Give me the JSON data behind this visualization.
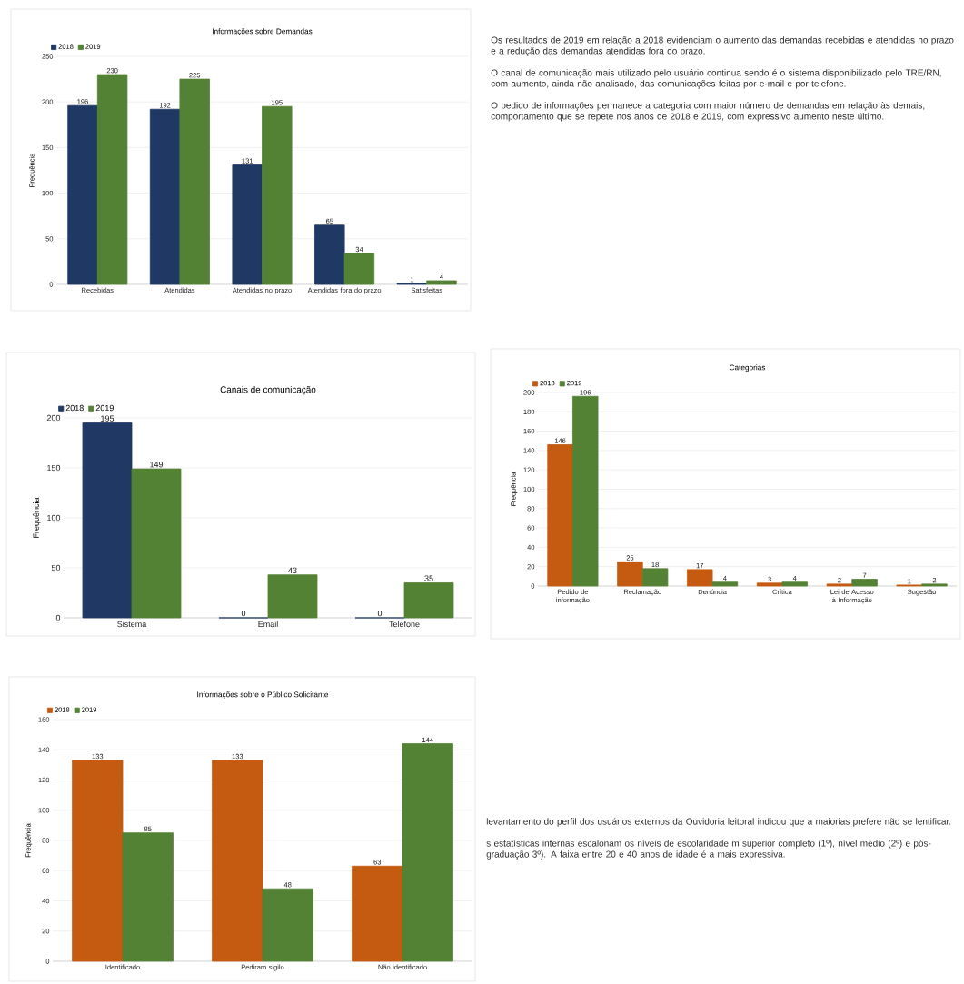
{
  "chart_data": [
    {
      "type": "bar",
      "title": "Informações sobre Demandas",
      "ylabel": "Frequência",
      "categories": [
        "Recebidas",
        "Atendidas",
        "Atendidas no prazo",
        "Atendidas fora do prazo",
        "Satisfeitas"
      ],
      "series": [
        {
          "name": "2018",
          "color": "#1f3864",
          "values": [
            196,
            192,
            131,
            65,
            1
          ]
        },
        {
          "name": "2019",
          "color": "#548235",
          "values": [
            230,
            225,
            195,
            34,
            4
          ]
        }
      ],
      "ylim": [
        0,
        250
      ],
      "yticks": [
        0,
        50,
        100,
        150,
        200,
        250
      ],
      "grid": "y",
      "legend": "top left",
      "data_labels": true
    },
    {
      "type": "other",
      "annotations": [
        "Os resultados de 2019 em relação a 2018 evidenciam o aumento das demandas recebidas e atendidas no prazo e a redução das demandas atendidas fora do prazo.",
        "O canal de comunicação mais utilizado pelo usuário continua sendo é o sistema disponibilizado pelo TRE/RN, com aumento, ainda não analisado, das comunicações feitas por e-mail e por telefone.",
        "O pedido de informações permanece a categoria com maior número de demandas em relação às demais, comportamento que se repete nos anos de 2018 e 2019, com expressivo aumento neste último."
      ]
    },
    {
      "type": "bar",
      "title": "Canais de comunicação",
      "ylabel": "Frequência",
      "categories": [
        "Sistema",
        "Email",
        "Telefone"
      ],
      "series": [
        {
          "name": "2018",
          "color": "#1f3864",
          "values": [
            195,
            0,
            0
          ]
        },
        {
          "name": "2019",
          "color": "#548235",
          "values": [
            149,
            43,
            35
          ]
        }
      ],
      "ylim": [
        0,
        200
      ],
      "yticks": [
        0,
        50,
        100,
        150,
        200
      ],
      "grid": "y",
      "legend": "top left",
      "data_labels": true
    },
    {
      "type": "bar",
      "title": "Categorias",
      "ylabel": "Frequência",
      "categories": [
        "Pedido de informação",
        "Reclamação",
        "Denúncia",
        "Crítica",
        "Lei de Acesso à Informação",
        "Sugestão"
      ],
      "series": [
        {
          "name": "2018",
          "color": "#c55a11",
          "values": [
            146,
            25,
            17,
            3,
            2,
            1
          ]
        },
        {
          "name": "2019",
          "color": "#548235",
          "values": [
            196,
            18,
            4,
            4,
            7,
            2
          ]
        }
      ],
      "ylim": [
        0,
        200
      ],
      "yticks": [
        0,
        20,
        40,
        60,
        80,
        100,
        120,
        140,
        160,
        180,
        200
      ],
      "grid": "y",
      "legend": "top left",
      "data_labels": true
    },
    {
      "type": "bar",
      "title": "Informações sobre o Público Solicitante",
      "ylabel": "Frequência",
      "categories": [
        "Identificado",
        "Pediram sigilo",
        "Não identificado"
      ],
      "series": [
        {
          "name": "2018",
          "color": "#c55a11",
          "values": [
            133,
            133,
            63
          ]
        },
        {
          "name": "2019",
          "color": "#548235",
          "values": [
            85,
            48,
            144
          ]
        }
      ],
      "ylim": [
        0,
        160
      ],
      "yticks": [
        0,
        20,
        40,
        60,
        80,
        100,
        120,
        140,
        160
      ],
      "grid": "y",
      "legend": "top left",
      "data_labels": true
    },
    {
      "type": "other",
      "annotations": [
        "levantamento do perfil dos usuários externos da Ouvidoria leitoral indicou que a maiorias prefere não se lentificar.",
        "s estatísticas internas escalonam os níveis de escolaridade m superior completo (1º), nível médio (2º) e pós-graduação 3º). A faixa entre 20 e 40 anos de idade é a mais expressiva."
      ]
    }
  ]
}
